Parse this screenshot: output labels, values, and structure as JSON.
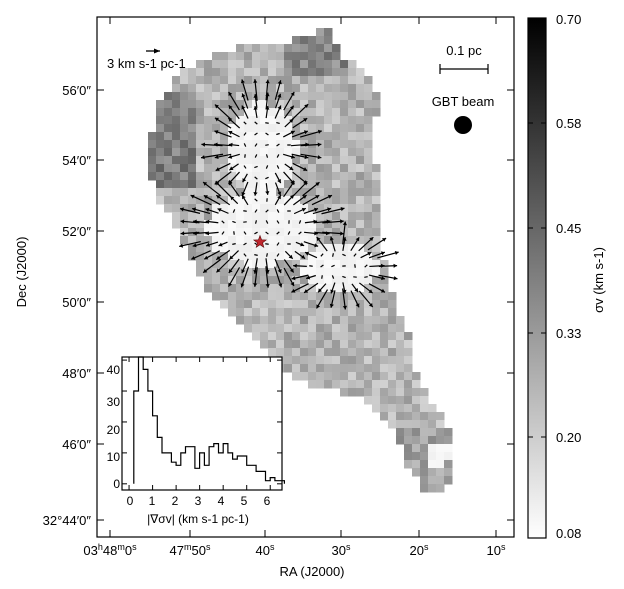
{
  "chart_data": [
    {
      "type": "heatmap",
      "xlabel": "RA (J2000)",
      "ylabel": "Dec (J2000)",
      "x_ticks": [
        {
          "label": "03h48m0s",
          "parts": [
            "03",
            "h",
            "48",
            "m",
            "0",
            "s"
          ]
        },
        {
          "label": "47m50s",
          "parts": [
            "47",
            "m",
            "50",
            "s"
          ]
        },
        {
          "label": "40s",
          "parts": [
            "40",
            "s"
          ]
        },
        {
          "label": "30s",
          "parts": [
            "30",
            "s"
          ]
        },
        {
          "label": "20s",
          "parts": [
            "20",
            "s"
          ]
        },
        {
          "label": "10s",
          "parts": [
            "10",
            "s"
          ]
        }
      ],
      "y_ticks": [
        "56′0″",
        "54′0″",
        "52′0″",
        "50′0″",
        "48′0″",
        "46′0″",
        "32°44′0″"
      ],
      "colorbar": {
        "label": "σv (km s-1)",
        "ticks": [
          "0.70",
          "0.58",
          "0.45",
          "0.33",
          "0.20",
          "0.08"
        ],
        "range": [
          0.08,
          0.7
        ],
        "colormap": "gray-reversed"
      },
      "annotations": {
        "vector_scale": "3 km s-1 pc-1",
        "scale_bar": "0.1 pc",
        "beam_label": "GBT beam"
      },
      "star_color": "#c0262d",
      "overlay": "gradient vectors"
    },
    {
      "type": "bar",
      "subtype": "histogram",
      "xlabel": "|∇σv| (km s-1 pc-1)",
      "x_ticks": [
        "0",
        "1",
        "2",
        "3",
        "4",
        "5",
        "6"
      ],
      "y_ticks": [
        "0",
        "10",
        "20",
        "30",
        "40"
      ],
      "xlim": [
        -0.3,
        6.5
      ],
      "ylim": [
        -2,
        41
      ],
      "bin_width": 0.2,
      "bin_start": 0.2,
      "values": [
        30,
        42,
        37,
        30,
        22,
        15,
        10,
        10,
        7,
        6,
        10,
        12,
        12,
        5,
        10,
        6,
        12,
        13,
        10,
        13,
        10,
        8,
        9,
        9,
        6,
        6,
        4,
        4,
        1,
        2,
        1,
        1
      ]
    }
  ]
}
